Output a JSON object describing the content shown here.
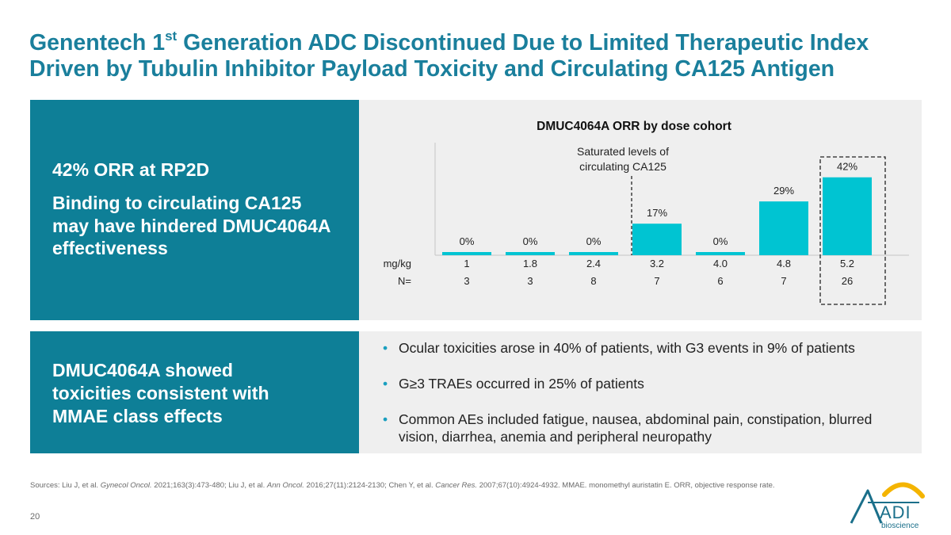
{
  "slide": {
    "title_pre": "Genentech 1",
    "title_sup": "st",
    "title_post": " Generation ADC Discontinued Due to Limited Therapeutic Index Driven by Tubulin Inhibitor Payload Toxicity and Circulating CA125 Antigen",
    "page_number": "20"
  },
  "left_top": {
    "orr_headline": "42% ORR at RP2D",
    "binding_text": "Binding to circulating CA125 may have hindered DMUC4064A effectiveness"
  },
  "left_bottom": {
    "text": "DMUC4064A showed toxicities consistent with MMAE class effects"
  },
  "bullets": [
    "Ocular toxicities arose in 40% of patients, with G3 events in 9% of patients",
    "G≥3 TRAEs occurred in 25% of patients",
    "Common AEs included fatigue, nausea, abdominal pain, constipation, blurred vision, diarrhea, anemia and peripheral neuropathy"
  ],
  "chart_data": {
    "type": "bar",
    "title": "DMUC4064A ORR by dose cohort",
    "categories": [
      "1",
      "1.8",
      "2.4",
      "3.2",
      "4.0",
      "4.8",
      "5.2"
    ],
    "values": [
      0,
      0,
      0,
      17,
      0,
      29,
      42
    ],
    "value_labels": [
      "0%",
      "0%",
      "0%",
      "17%",
      "0%",
      "29%",
      "42%"
    ],
    "n_values": [
      "3",
      "3",
      "8",
      "7",
      "6",
      "7",
      "26"
    ],
    "row_label_dose": "mg/kg",
    "row_label_n": "N=",
    "ylim": [
      0,
      50
    ],
    "annotation": "Saturated levels of circulating CA125",
    "annotation_line1": "Saturated levels of",
    "annotation_line2": "circulating CA125",
    "highlighted_category": "5.2",
    "bar_color": "#00c4d2"
  },
  "sources": {
    "prefix": "Sources: Liu J, et al. ",
    "j1": "Gynecol Oncol.",
    "r1": " 2021;163(3):473-480; Liu J, et al. ",
    "j2": "Ann Oncol.",
    "r2": " 2016;27(11):2124-2130; Chen Y, et al. ",
    "j3": "Cancer Res.",
    "r3": " 2007;67(10):4924-4932. MMAE. monomethyl auristatin E. ORR, objective response rate."
  },
  "logo": {
    "letters": "ADI",
    "tagline": "bioscience"
  }
}
